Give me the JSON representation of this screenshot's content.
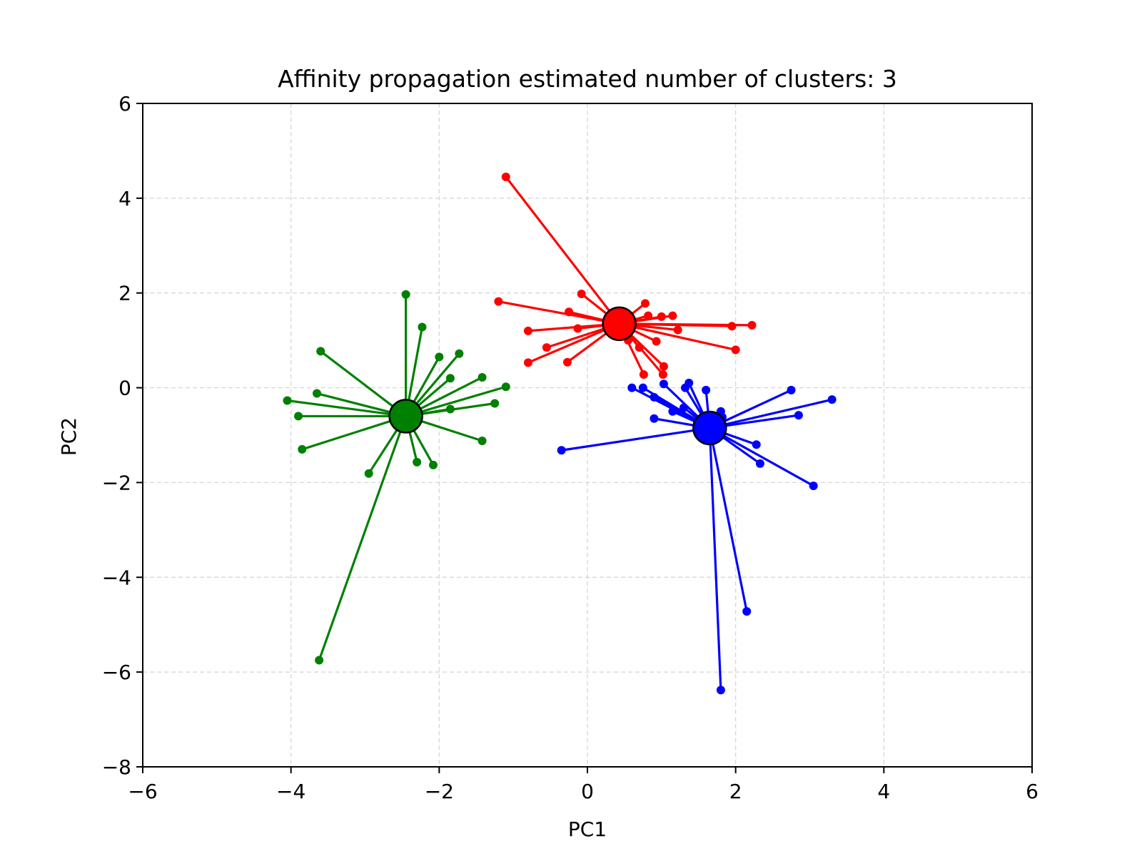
{
  "chart_data": {
    "type": "scatter",
    "title": "Affinity propagation estimated number of clusters: 3",
    "xlabel": "PC1",
    "ylabel": "PC2",
    "xlim": [
      -6,
      6
    ],
    "ylim": [
      -8,
      6
    ],
    "xticks": [
      -6,
      -4,
      -2,
      0,
      2,
      4,
      6
    ],
    "yticks": [
      -8,
      -6,
      -4,
      -2,
      0,
      2,
      4,
      6
    ],
    "xtick_labels": [
      "−6",
      "−4",
      "−2",
      "0",
      "2",
      "4",
      "6"
    ],
    "ytick_labels": [
      "−8",
      "−6",
      "−4",
      "−2",
      "0",
      "2",
      "4",
      "6"
    ],
    "grid": true,
    "legend": false,
    "clusters": [
      {
        "color": "#ff0000",
        "center": [
          0.43,
          1.35
        ],
        "points": [
          [
            -1.1,
            4.45
          ],
          [
            -1.2,
            1.82
          ],
          [
            -0.8,
            1.2
          ],
          [
            -0.8,
            0.53
          ],
          [
            -0.55,
            0.85
          ],
          [
            -0.27,
            0.54
          ],
          [
            -0.25,
            1.6
          ],
          [
            -0.13,
            1.25
          ],
          [
            -0.08,
            1.98
          ],
          [
            0.78,
            1.78
          ],
          [
            0.82,
            1.52
          ],
          [
            1.0,
            1.5
          ],
          [
            1.15,
            1.52
          ],
          [
            1.22,
            1.22
          ],
          [
            1.95,
            1.3
          ],
          [
            2.22,
            1.32
          ],
          [
            2.0,
            0.8
          ],
          [
            0.93,
            0.98
          ],
          [
            0.7,
            0.85
          ],
          [
            0.76,
            0.28
          ],
          [
            1.02,
            0.28
          ],
          [
            1.03,
            0.45
          ],
          [
            0.55,
            1.0
          ]
        ]
      },
      {
        "color": "#0000ff",
        "center": [
          1.65,
          -0.85
        ],
        "points": [
          [
            -0.35,
            -1.32
          ],
          [
            0.6,
            0.0
          ],
          [
            0.75,
            0.0
          ],
          [
            0.9,
            -0.2
          ],
          [
            0.9,
            -0.65
          ],
          [
            1.03,
            0.08
          ],
          [
            1.15,
            -0.5
          ],
          [
            1.3,
            -0.42
          ],
          [
            1.32,
            -0.0
          ],
          [
            1.37,
            0.1
          ],
          [
            1.6,
            -0.05
          ],
          [
            1.8,
            -0.5
          ],
          [
            1.82,
            -0.62
          ],
          [
            2.28,
            -1.2
          ],
          [
            2.33,
            -1.6
          ],
          [
            2.75,
            -0.05
          ],
          [
            2.85,
            -0.58
          ],
          [
            3.3,
            -0.25
          ],
          [
            3.05,
            -2.07
          ],
          [
            2.15,
            -4.72
          ],
          [
            1.8,
            -6.38
          ]
        ]
      },
      {
        "color": "#008000",
        "center": [
          -2.45,
          -0.6
        ],
        "points": [
          [
            -4.05,
            -0.27
          ],
          [
            -3.9,
            -0.6
          ],
          [
            -3.85,
            -1.3
          ],
          [
            -3.65,
            -0.12
          ],
          [
            -3.6,
            0.77
          ],
          [
            -2.45,
            1.97
          ],
          [
            -2.23,
            1.28
          ],
          [
            -2.0,
            0.65
          ],
          [
            -1.85,
            0.2
          ],
          [
            -1.85,
            -0.45
          ],
          [
            -1.73,
            0.72
          ],
          [
            -1.42,
            0.22
          ],
          [
            -1.42,
            -1.12
          ],
          [
            -1.25,
            -0.33
          ],
          [
            -1.1,
            0.02
          ],
          [
            -2.3,
            -1.57
          ],
          [
            -2.08,
            -1.63
          ],
          [
            -2.95,
            -1.81
          ],
          [
            -3.62,
            -5.75
          ]
        ]
      }
    ]
  }
}
